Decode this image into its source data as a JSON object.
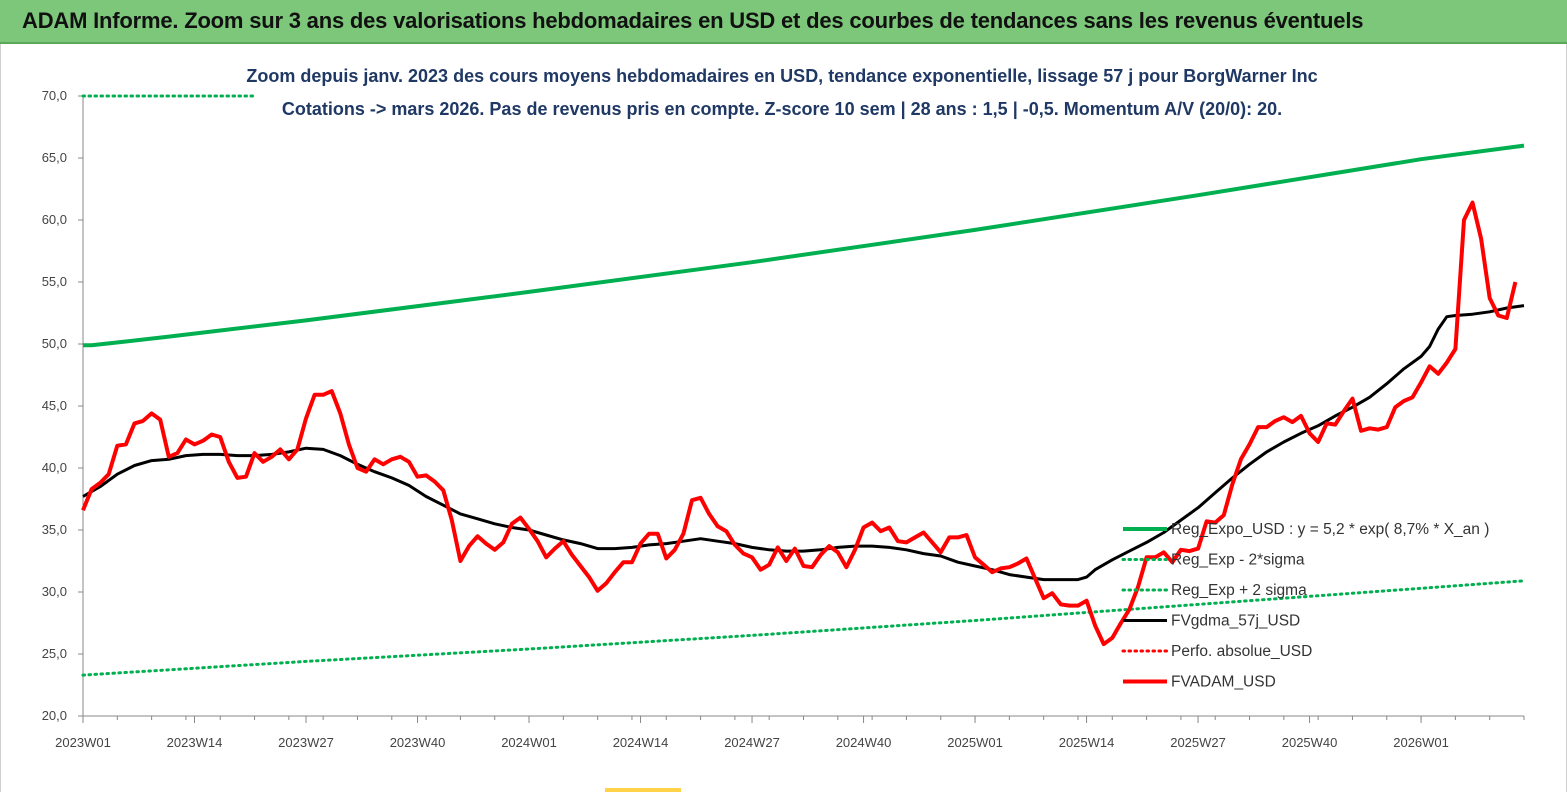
{
  "banner_title": "ADAM Informe. Zoom sur 3 ans des valorisations hebdomadaires en USD et des courbes de tendances sans les revenus éventuels",
  "chart_data": {
    "type": "line",
    "title_line1": "Zoom depuis janv. 2023 des cours moyens hebdomadaires en USD, tendance exponentielle, lissage 57 j pour BorgWarner Inc",
    "title_line2": "Cotations -> mars 2026. Pas de revenus pris en compte. Z-score 10 sem | 28 ans : 1,5 | -0,5. Momentum A/V (20/0): 20.",
    "ylim": [
      20,
      70
    ],
    "y_ticks": [
      "20,0",
      "25,0",
      "30,0",
      "35,0",
      "40,0",
      "45,0",
      "50,0",
      "55,0",
      "60,0",
      "65,0",
      "70,0"
    ],
    "x_ticks": [
      "2023W01",
      "2023W14",
      "2023W27",
      "2023W40",
      "2024W01",
      "2024W14",
      "2024W27",
      "2024W40",
      "2025W01",
      "2025W14",
      "2025W27",
      "2025W40",
      "2026W01"
    ],
    "week_range": [
      0,
      168
    ],
    "series": [
      {
        "name": "Reg_Expo_USD : y = 5,2 * exp( 8,7% * X_an )",
        "color": "#00b050",
        "style": "solid-thick",
        "points": [
          [
            0,
            49.9
          ],
          [
            1,
            49.9
          ],
          [
            5,
            50.2
          ],
          [
            10,
            50.6
          ],
          [
            26,
            51.9
          ],
          [
            52,
            54.2
          ],
          [
            78,
            56.6
          ],
          [
            104,
            59.2
          ],
          [
            130,
            62.0
          ],
          [
            156,
            64.9
          ],
          [
            168,
            66.0
          ]
        ]
      },
      {
        "name": "Reg_Exp - 2*sigma",
        "color": "#00b050",
        "style": "dotted",
        "points": [
          [
            0,
            23.3
          ],
          [
            26,
            24.4
          ],
          [
            52,
            25.4
          ],
          [
            78,
            26.5
          ],
          [
            104,
            27.7
          ],
          [
            130,
            29.0
          ],
          [
            156,
            30.3
          ],
          [
            168,
            30.9
          ]
        ]
      },
      {
        "name": "Reg_Exp + 2 sigma",
        "color": "#00b050",
        "style": "dotted",
        "points": [
          [
            0,
            70.0
          ],
          [
            20,
            70.0
          ]
        ]
      },
      {
        "name": "FVgdma_57j_USD",
        "color": "#000000",
        "style": "solid",
        "points": [
          [
            0,
            37.7
          ],
          [
            2,
            38.5
          ],
          [
            4,
            39.5
          ],
          [
            6,
            40.2
          ],
          [
            8,
            40.6
          ],
          [
            10,
            40.7
          ],
          [
            12,
            41.0
          ],
          [
            14,
            41.1
          ],
          [
            16,
            41.1
          ],
          [
            18,
            41.0
          ],
          [
            20,
            41.0
          ],
          [
            22,
            41.1
          ],
          [
            24,
            41.3
          ],
          [
            26,
            41.6
          ],
          [
            28,
            41.5
          ],
          [
            30,
            41.0
          ],
          [
            32,
            40.3
          ],
          [
            34,
            39.7
          ],
          [
            36,
            39.2
          ],
          [
            38,
            38.6
          ],
          [
            40,
            37.7
          ],
          [
            42,
            37.0
          ],
          [
            44,
            36.3
          ],
          [
            46,
            35.9
          ],
          [
            48,
            35.5
          ],
          [
            50,
            35.2
          ],
          [
            52,
            35.0
          ],
          [
            54,
            34.6
          ],
          [
            56,
            34.2
          ],
          [
            58,
            33.9
          ],
          [
            60,
            33.5
          ],
          [
            62,
            33.5
          ],
          [
            64,
            33.6
          ],
          [
            66,
            33.8
          ],
          [
            68,
            33.9
          ],
          [
            70,
            34.1
          ],
          [
            72,
            34.3
          ],
          [
            74,
            34.1
          ],
          [
            76,
            33.9
          ],
          [
            78,
            33.6
          ],
          [
            80,
            33.4
          ],
          [
            82,
            33.3
          ],
          [
            84,
            33.3
          ],
          [
            86,
            33.4
          ],
          [
            88,
            33.6
          ],
          [
            90,
            33.7
          ],
          [
            92,
            33.7
          ],
          [
            94,
            33.6
          ],
          [
            96,
            33.4
          ],
          [
            98,
            33.1
          ],
          [
            100,
            32.9
          ],
          [
            102,
            32.4
          ],
          [
            104,
            32.1
          ],
          [
            106,
            31.8
          ],
          [
            108,
            31.4
          ],
          [
            110,
            31.2
          ],
          [
            112,
            31.0
          ],
          [
            114,
            31.0
          ],
          [
            116,
            31.0
          ],
          [
            117,
            31.2
          ],
          [
            118,
            31.8
          ],
          [
            120,
            32.6
          ],
          [
            122,
            33.3
          ],
          [
            124,
            34.0
          ],
          [
            126,
            34.8
          ],
          [
            128,
            35.8
          ],
          [
            130,
            36.8
          ],
          [
            132,
            38.0
          ],
          [
            134,
            39.2
          ],
          [
            136,
            40.3
          ],
          [
            138,
            41.3
          ],
          [
            140,
            42.1
          ],
          [
            142,
            42.8
          ],
          [
            144,
            43.4
          ],
          [
            146,
            44.2
          ],
          [
            148,
            44.9
          ],
          [
            150,
            45.7
          ],
          [
            152,
            46.8
          ],
          [
            154,
            48.0
          ],
          [
            156,
            49.0
          ],
          [
            157,
            49.8
          ],
          [
            158,
            51.2
          ],
          [
            159,
            52.2
          ],
          [
            160,
            52.3
          ],
          [
            162,
            52.4
          ],
          [
            164,
            52.6
          ],
          [
            166,
            52.9
          ],
          [
            168,
            53.1
          ]
        ]
      },
      {
        "name": "Perfo. absolue_USD",
        "color": "#ff0000",
        "style": "dotted",
        "points": []
      },
      {
        "name": "FVADAM_USD",
        "color": "#ff0000",
        "style": "solid-thick",
        "points": [
          [
            0,
            36.6
          ],
          [
            1,
            38.3
          ],
          [
            2,
            38.8
          ],
          [
            3,
            39.5
          ],
          [
            4,
            41.8
          ],
          [
            5,
            41.9
          ],
          [
            6,
            43.6
          ],
          [
            7,
            43.8
          ],
          [
            8,
            44.4
          ],
          [
            9,
            43.9
          ],
          [
            10,
            40.9
          ],
          [
            11,
            41.2
          ],
          [
            12,
            42.3
          ],
          [
            13,
            41.9
          ],
          [
            14,
            42.2
          ],
          [
            15,
            42.7
          ],
          [
            16,
            42.5
          ],
          [
            17,
            40.5
          ],
          [
            18,
            39.2
          ],
          [
            19,
            39.3
          ],
          [
            20,
            41.2
          ],
          [
            21,
            40.5
          ],
          [
            22,
            40.9
          ],
          [
            23,
            41.5
          ],
          [
            24,
            40.7
          ],
          [
            25,
            41.5
          ],
          [
            26,
            44.0
          ],
          [
            27,
            45.9
          ],
          [
            28,
            45.9
          ],
          [
            29,
            46.2
          ],
          [
            30,
            44.4
          ],
          [
            31,
            41.9
          ],
          [
            32,
            40.0
          ],
          [
            33,
            39.7
          ],
          [
            34,
            40.7
          ],
          [
            35,
            40.3
          ],
          [
            36,
            40.7
          ],
          [
            37,
            40.9
          ],
          [
            38,
            40.5
          ],
          [
            39,
            39.3
          ],
          [
            40,
            39.4
          ],
          [
            41,
            38.9
          ],
          [
            42,
            38.2
          ],
          [
            43,
            35.8
          ],
          [
            44,
            32.5
          ],
          [
            45,
            33.7
          ],
          [
            46,
            34.5
          ],
          [
            47,
            33.9
          ],
          [
            48,
            33.4
          ],
          [
            49,
            34.0
          ],
          [
            50,
            35.5
          ],
          [
            51,
            36.0
          ],
          [
            52,
            35.1
          ],
          [
            53,
            34.1
          ],
          [
            54,
            32.8
          ],
          [
            55,
            33.5
          ],
          [
            56,
            34.1
          ],
          [
            57,
            33.0
          ],
          [
            58,
            32.1
          ],
          [
            59,
            31.2
          ],
          [
            60,
            30.1
          ],
          [
            61,
            30.7
          ],
          [
            62,
            31.6
          ],
          [
            63,
            32.4
          ],
          [
            64,
            32.4
          ],
          [
            65,
            33.9
          ],
          [
            66,
            34.7
          ],
          [
            67,
            34.7
          ],
          [
            68,
            32.7
          ],
          [
            69,
            33.4
          ],
          [
            70,
            34.7
          ],
          [
            71,
            37.4
          ],
          [
            72,
            37.6
          ],
          [
            73,
            36.3
          ],
          [
            74,
            35.3
          ],
          [
            75,
            34.9
          ],
          [
            76,
            33.8
          ],
          [
            77,
            33.1
          ],
          [
            78,
            32.8
          ],
          [
            79,
            31.8
          ],
          [
            80,
            32.2
          ],
          [
            81,
            33.6
          ],
          [
            82,
            32.5
          ],
          [
            83,
            33.5
          ],
          [
            84,
            32.1
          ],
          [
            85,
            32.0
          ],
          [
            86,
            33.0
          ],
          [
            87,
            33.7
          ],
          [
            88,
            33.2
          ],
          [
            89,
            32.0
          ],
          [
            90,
            33.4
          ],
          [
            91,
            35.2
          ],
          [
            92,
            35.6
          ],
          [
            93,
            34.9
          ],
          [
            94,
            35.2
          ],
          [
            95,
            34.1
          ],
          [
            96,
            34.0
          ],
          [
            97,
            34.4
          ],
          [
            98,
            34.8
          ],
          [
            99,
            34.0
          ],
          [
            100,
            33.2
          ],
          [
            101,
            34.4
          ],
          [
            102,
            34.4
          ],
          [
            103,
            34.6
          ],
          [
            104,
            32.8
          ],
          [
            105,
            32.2
          ],
          [
            106,
            31.6
          ],
          [
            107,
            31.9
          ],
          [
            108,
            32.0
          ],
          [
            109,
            32.3
          ],
          [
            110,
            32.7
          ],
          [
            111,
            31.1
          ],
          [
            112,
            29.5
          ],
          [
            113,
            29.9
          ],
          [
            114,
            29.0
          ],
          [
            115,
            28.9
          ],
          [
            116,
            28.9
          ],
          [
            117,
            29.3
          ],
          [
            118,
            27.3
          ],
          [
            119,
            25.8
          ],
          [
            120,
            26.3
          ],
          [
            121,
            27.5
          ],
          [
            122,
            28.6
          ],
          [
            123,
            30.4
          ],
          [
            124,
            32.8
          ],
          [
            125,
            32.8
          ],
          [
            126,
            33.2
          ],
          [
            127,
            32.4
          ],
          [
            128,
            33.4
          ],
          [
            129,
            33.3
          ],
          [
            130,
            33.5
          ],
          [
            131,
            35.7
          ],
          [
            132,
            35.6
          ],
          [
            133,
            36.2
          ],
          [
            134,
            38.7
          ],
          [
            135,
            40.7
          ],
          [
            136,
            41.9
          ],
          [
            137,
            43.3
          ],
          [
            138,
            43.3
          ],
          [
            139,
            43.8
          ],
          [
            140,
            44.1
          ],
          [
            141,
            43.7
          ],
          [
            142,
            44.2
          ],
          [
            143,
            42.8
          ],
          [
            144,
            42.1
          ],
          [
            145,
            43.6
          ],
          [
            146,
            43.5
          ],
          [
            147,
            44.6
          ],
          [
            148,
            45.6
          ],
          [
            149,
            43.0
          ],
          [
            150,
            43.2
          ],
          [
            151,
            43.1
          ],
          [
            152,
            43.3
          ],
          [
            153,
            44.9
          ],
          [
            154,
            45.4
          ],
          [
            155,
            45.7
          ],
          [
            156,
            46.9
          ],
          [
            157,
            48.2
          ],
          [
            158,
            47.6
          ],
          [
            159,
            48.5
          ],
          [
            160,
            49.6
          ],
          [
            161,
            60.0
          ],
          [
            162,
            61.4
          ],
          [
            163,
            58.5
          ],
          [
            164,
            53.7
          ],
          [
            165,
            52.3
          ],
          [
            166,
            52.1
          ],
          [
            167,
            55.0
          ]
        ]
      }
    ]
  }
}
